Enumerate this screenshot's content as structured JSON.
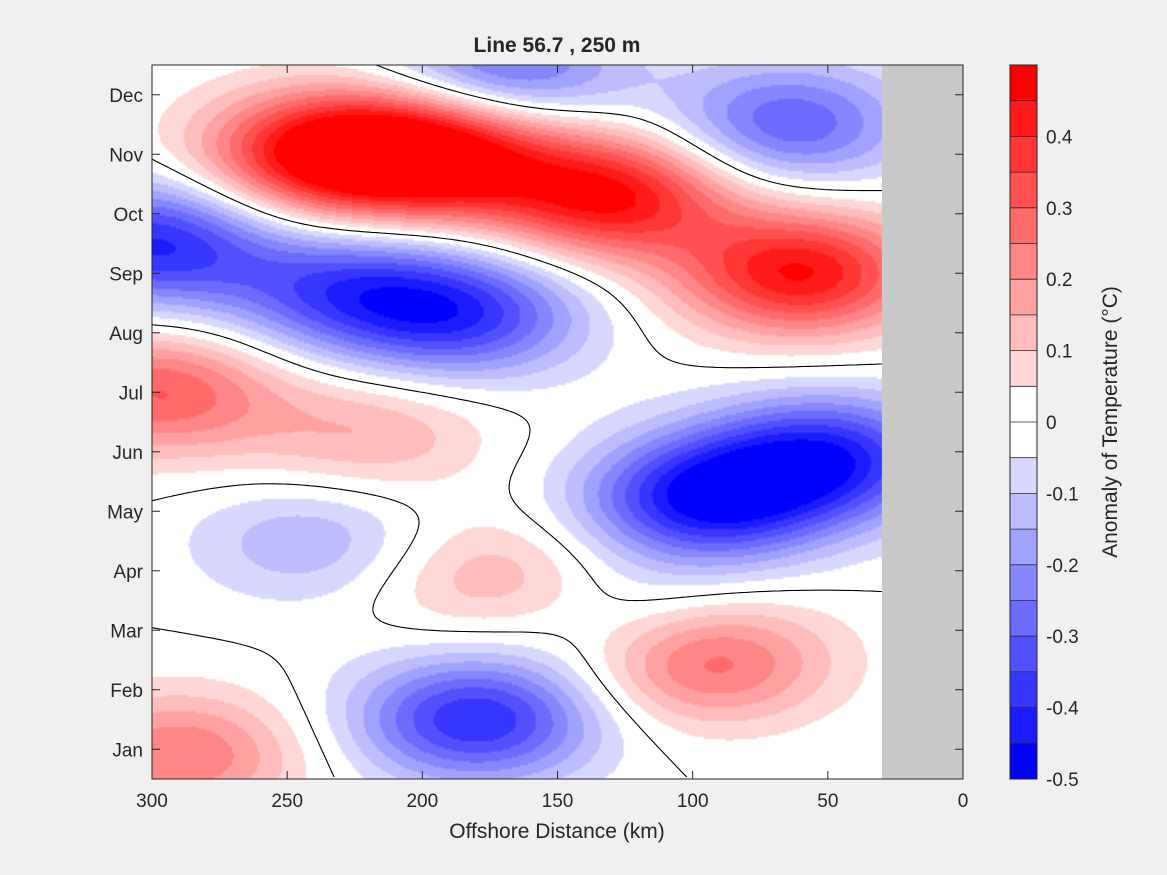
{
  "chart_data": {
    "type": "heatmap",
    "subtype": "filled-contour",
    "title": "Line 56.7 , 250 m",
    "xlabel": "Offshore Distance (km)",
    "xlim": [
      300,
      0
    ],
    "xticks": [
      300,
      250,
      200,
      150,
      100,
      50,
      0
    ],
    "ylim": [
      0.5,
      12.5
    ],
    "yticks": [
      1,
      2,
      3,
      4,
      5,
      6,
      7,
      8,
      9,
      10,
      11,
      12
    ],
    "yticklabels": [
      "Jan",
      "Feb",
      "Mar",
      "Apr",
      "May",
      "Jun",
      "Jul",
      "Aug",
      "Sep",
      "Oct",
      "Nov",
      "Dec"
    ],
    "colorbar": {
      "label": "Anomaly of Temperature (°C)",
      "range": [
        -0.5,
        0.5
      ],
      "step": 0.05,
      "ticks": [
        -0.5,
        -0.4,
        -0.3,
        -0.2,
        -0.1,
        0,
        0.1,
        0.2,
        0.3,
        0.4
      ],
      "ticklabels": [
        "-0.5",
        "-0.4",
        "-0.3",
        "-0.2",
        "-0.1",
        "0",
        "0.1",
        "0.2",
        "0.3",
        "0.4"
      ],
      "colormap": "blue-white-red"
    },
    "zero_contour_shown": true,
    "land_mask": {
      "from_km": 30,
      "to_km": 0,
      "color": "#c8c8c8"
    },
    "anomaly_centers": [
      {
        "distance_km": 195,
        "month": 11.0,
        "value": 0.5
      },
      {
        "distance_km": 237,
        "month": 11.0,
        "value": 0.45
      },
      {
        "distance_km": 130,
        "month": 10.3,
        "value": 0.45
      },
      {
        "distance_km": 60,
        "month": 9.0,
        "value": 0.45
      },
      {
        "distance_km": 298,
        "month": 7.0,
        "value": 0.3
      },
      {
        "distance_km": 220,
        "month": 6.3,
        "value": 0.15
      },
      {
        "distance_km": 175,
        "month": 3.9,
        "value": 0.15
      },
      {
        "distance_km": 95,
        "month": 2.5,
        "value": 0.3
      },
      {
        "distance_km": 290,
        "month": 0.9,
        "value": 0.25
      },
      {
        "distance_km": 300,
        "month": 9.5,
        "value": -0.4
      },
      {
        "distance_km": 185,
        "month": 8.3,
        "value": -0.35
      },
      {
        "distance_km": 230,
        "month": 8.7,
        "value": -0.3
      },
      {
        "distance_km": 95,
        "month": 5.2,
        "value": -0.45
      },
      {
        "distance_km": 50,
        "month": 5.9,
        "value": -0.4
      },
      {
        "distance_km": 180,
        "month": 1.5,
        "value": -0.4
      },
      {
        "distance_km": 65,
        "month": 11.5,
        "value": -0.3
      },
      {
        "distance_km": 170,
        "month": 12.4,
        "value": -0.3
      },
      {
        "distance_km": 240,
        "month": 4.5,
        "value": -0.15
      },
      {
        "distance_km": 120,
        "month": 3.2,
        "value": -0.1
      }
    ]
  }
}
